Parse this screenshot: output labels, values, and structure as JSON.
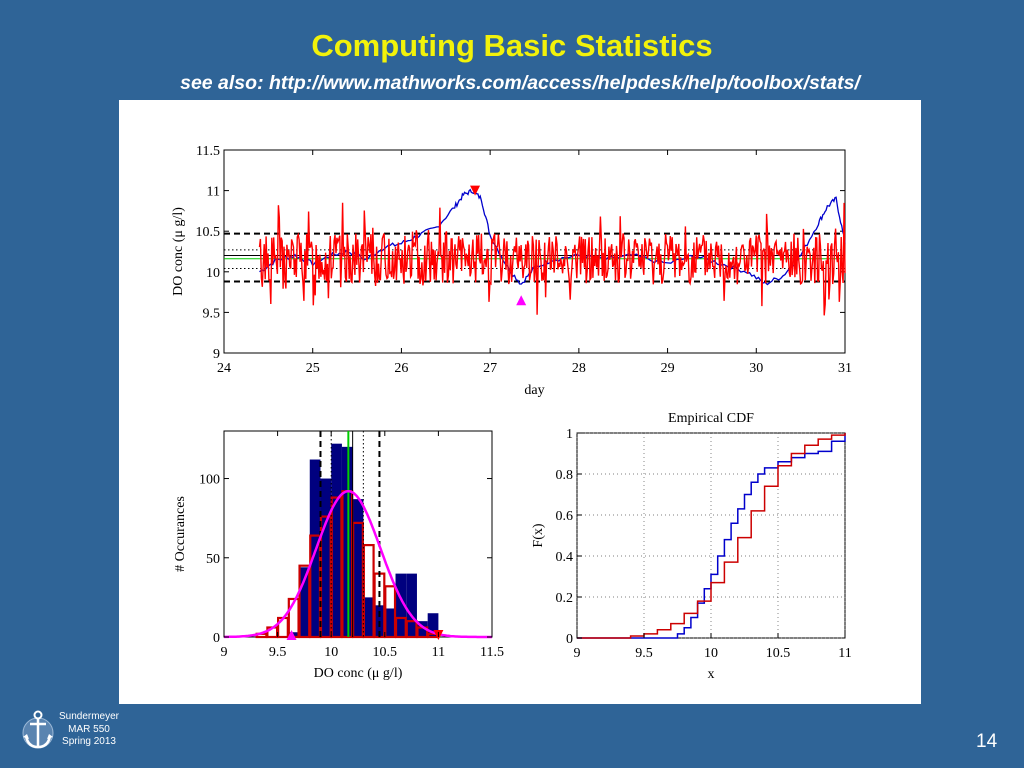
{
  "slide": {
    "title": "Computing Basic Statistics",
    "subtitle": "see also: http://www.mathworks.com/access/helpdesk/help/toolbox/stats/",
    "footer_lines": [
      "Sundermeyer",
      "MAR 550",
      "Spring 2013"
    ],
    "page_number": "14",
    "logo_icon": "anchor-icon"
  },
  "colors": {
    "background": "#2f6497",
    "title": "#f2f20a",
    "series_red": "#ff0000",
    "series_blue": "#0000cc",
    "histogram_navy": "#00007f",
    "histogram_red_outline": "#cc0000",
    "normal_fit": "#ff00ff",
    "mean_line": "#00cc00",
    "std_lines": "#000000"
  },
  "chart_data": [
    {
      "type": "line",
      "title": "",
      "xlabel": "day",
      "ylabel": "DO conc (μ g/l)",
      "xlim": [
        24,
        31
      ],
      "ylim": [
        9,
        11.5
      ],
      "xticks": [
        "24",
        "25",
        "26",
        "27",
        "28",
        "29",
        "30",
        "31"
      ],
      "yticks": [
        "9",
        "9.5",
        "10",
        "10.5",
        "11",
        "11.5"
      ],
      "series": [
        {
          "color": "#0000cc",
          "x": [
            24.4,
            24.6,
            24.8,
            25.0,
            25.2,
            25.4,
            25.6,
            25.8,
            26.0,
            26.2,
            26.4,
            26.6,
            26.7,
            26.8,
            26.9,
            27.0,
            27.2,
            27.35,
            27.5,
            27.7,
            28.0,
            28.3,
            28.6,
            29.0,
            29.3,
            29.6,
            29.9,
            30.1,
            30.3,
            30.5,
            30.7,
            30.8,
            30.9,
            31.0
          ],
          "y": [
            10.0,
            10.15,
            10.2,
            10.1,
            10.2,
            10.25,
            10.15,
            10.3,
            10.35,
            10.45,
            10.55,
            10.8,
            10.95,
            11.0,
            10.9,
            10.45,
            10.05,
            9.85,
            10.05,
            10.15,
            10.2,
            10.15,
            10.2,
            10.1,
            10.2,
            10.1,
            10.0,
            9.85,
            9.95,
            10.2,
            10.6,
            10.8,
            10.9,
            10.35
          ]
        },
        {
          "color": "#ff0000",
          "x_range": [
            24.4,
            31.0
          ],
          "center": 10.16,
          "amplitude_range": [
            9.4,
            10.95
          ],
          "note_shape": "high-frequency oscillation"
        }
      ],
      "hlines": [
        {
          "y": 10.47,
          "style": "dashed",
          "color": "#000000"
        },
        {
          "y": 9.88,
          "style": "dashed",
          "color": "#000000"
        },
        {
          "y": 10.27,
          "style": "dotted",
          "color": "#000000"
        },
        {
          "y": 10.04,
          "style": "dotted",
          "color": "#000000"
        },
        {
          "y": 10.16,
          "style": "solid",
          "color": "#00cc00"
        },
        {
          "y": 10.2,
          "style": "solid",
          "color": "#000000"
        }
      ],
      "markers": [
        {
          "x": 26.83,
          "y": 11.0,
          "shape": "triangle-down",
          "color": "#ff0000"
        },
        {
          "x": 27.35,
          "y": 9.65,
          "shape": "triangle-up",
          "color": "#ff00ff"
        }
      ]
    },
    {
      "type": "bar",
      "title": "",
      "xlabel": "DO conc (μ g/l)",
      "ylabel": "# Occurances",
      "xlim": [
        9,
        11.5
      ],
      "ylim": [
        0,
        130
      ],
      "xticks": [
        "9",
        "9.5",
        "10",
        "10.5",
        "11",
        "11.5"
      ],
      "yticks": [
        "0",
        "50",
        "100"
      ],
      "bin_width": 0.1,
      "series": [
        {
          "color": "#00007f",
          "style": "filled",
          "bin_centers": [
            9.65,
            9.75,
            9.85,
            9.95,
            10.05,
            10.15,
            10.25,
            10.35,
            10.45,
            10.55,
            10.65,
            10.75,
            10.85,
            10.95
          ],
          "values": [
            3,
            44,
            112,
            100,
            122,
            120,
            87,
            25,
            20,
            18,
            40,
            40,
            10,
            15
          ]
        },
        {
          "color": "#cc0000",
          "style": "outline",
          "bin_centers": [
            9.35,
            9.45,
            9.55,
            9.65,
            9.75,
            9.85,
            9.95,
            10.05,
            10.15,
            10.25,
            10.35,
            10.45,
            10.55,
            10.65,
            10.75,
            10.85,
            10.95
          ],
          "values": [
            2,
            6,
            12,
            24,
            45,
            64,
            76,
            88,
            92,
            72,
            58,
            40,
            32,
            12,
            10,
            6,
            2
          ]
        }
      ],
      "normal_fit": {
        "mean": 10.16,
        "std": 0.3,
        "peak": 92,
        "color": "#ff00ff"
      },
      "vlines": [
        {
          "x": 9.9,
          "style": "dashed",
          "color": "#000000"
        },
        {
          "x": 10.45,
          "style": "dashed",
          "color": "#000000"
        },
        {
          "x": 10.0,
          "style": "dotted",
          "color": "#000000"
        },
        {
          "x": 10.3,
          "style": "dotted",
          "color": "#000000"
        },
        {
          "x": 10.16,
          "style": "solid",
          "color": "#00cc00"
        },
        {
          "x": 10.2,
          "style": "solid",
          "color": "#000000"
        }
      ],
      "markers": [
        {
          "x": 9.63,
          "y": 0,
          "shape": "triangle-up",
          "color": "#ff00ff"
        },
        {
          "x": 11.0,
          "y": 0,
          "shape": "triangle-down",
          "color": "#ff0000"
        }
      ]
    },
    {
      "type": "line",
      "title": "Empirical CDF",
      "xlabel": "x",
      "ylabel": "F(x)",
      "xlim": [
        9,
        11
      ],
      "ylim": [
        0,
        1
      ],
      "xticks": [
        "9",
        "9.5",
        "10",
        "10.5",
        "11"
      ],
      "yticks": [
        "0",
        "0.2",
        "0.4",
        "0.6",
        "0.8",
        "1"
      ],
      "grid": true,
      "series": [
        {
          "color": "#0000cc",
          "x": [
            9.0,
            9.7,
            9.75,
            9.8,
            9.85,
            9.9,
            9.95,
            10.0,
            10.05,
            10.1,
            10.15,
            10.2,
            10.25,
            10.3,
            10.35,
            10.4,
            10.5,
            10.6,
            10.7,
            10.8,
            10.9,
            11.0
          ],
          "y": [
            0.0,
            0.0,
            0.02,
            0.05,
            0.1,
            0.17,
            0.24,
            0.31,
            0.4,
            0.48,
            0.56,
            0.63,
            0.7,
            0.76,
            0.8,
            0.83,
            0.86,
            0.88,
            0.9,
            0.91,
            0.96,
            1.0
          ]
        },
        {
          "color": "#cc0000",
          "x": [
            9.0,
            9.3,
            9.4,
            9.5,
            9.6,
            9.7,
            9.8,
            9.9,
            10.0,
            10.1,
            10.2,
            10.3,
            10.4,
            10.5,
            10.6,
            10.7,
            10.8,
            10.9,
            11.0
          ],
          "y": [
            0.0,
            0.0,
            0.01,
            0.02,
            0.04,
            0.07,
            0.12,
            0.18,
            0.27,
            0.37,
            0.49,
            0.62,
            0.74,
            0.84,
            0.9,
            0.94,
            0.97,
            0.99,
            1.0
          ]
        }
      ]
    }
  ]
}
